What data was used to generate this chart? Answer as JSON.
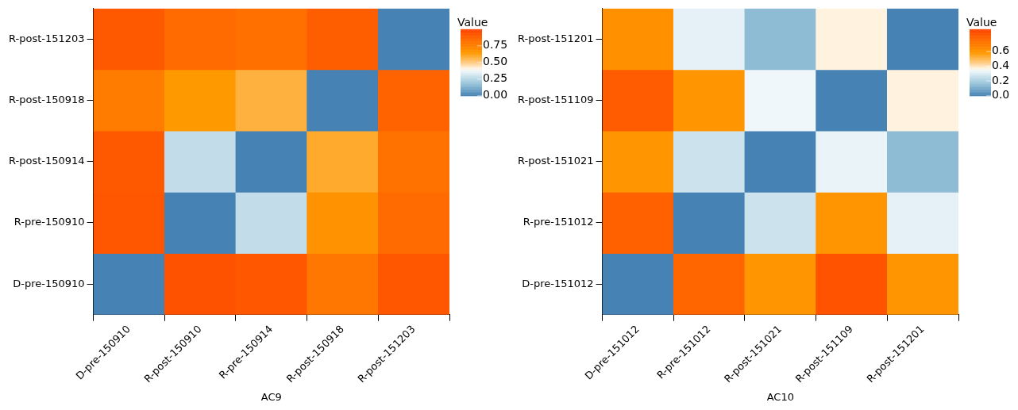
{
  "chart_data": [
    {
      "type": "heatmap",
      "xlabel": "AC9",
      "clabel": "Value",
      "categories": [
        "D-pre-150910",
        "R-post-150910",
        "R-pre-150914",
        "R-post-150918",
        "R-post-151203"
      ],
      "y_categories": [
        "R-post-151203",
        "R-post-150918",
        "R-post-150914",
        "R-pre-150910",
        "D-pre-150910"
      ],
      "cells": [
        [
          0.92,
          0.85,
          0.83,
          0.9,
          0
        ],
        [
          0.78,
          0.65,
          0.58,
          0,
          0.88
        ],
        [
          0.92,
          0.28,
          0,
          0.6,
          0.82
        ],
        [
          0.93,
          0,
          0.28,
          0.68,
          0.85
        ],
        [
          0,
          0.95,
          0.93,
          0.8,
          0.93
        ]
      ],
      "clim": [
        0,
        1
      ],
      "cticks": [
        {
          "value": 0,
          "label": "0.00"
        },
        {
          "value": 0.25,
          "label": "0.25"
        },
        {
          "value": 0.5,
          "label": "0.50"
        },
        {
          "value": 0.75,
          "label": "0.75"
        }
      ]
    },
    {
      "type": "heatmap",
      "xlabel": "AC10",
      "clabel": "Value",
      "categories": [
        "D-pre-151012",
        "R-pre-151012",
        "R-post-151021",
        "R-post-151109",
        "R-post-151201"
      ],
      "y_categories": [
        "R-post-151201",
        "R-post-151109",
        "R-post-151021",
        "R-pre-151012",
        "D-pre-151012"
      ],
      "cells": [
        [
          0.62,
          0.32,
          0.15,
          0.38,
          0
        ],
        [
          0.82,
          0.6,
          0.34,
          0,
          0.38
        ],
        [
          0.6,
          0.27,
          0,
          0.33,
          0.15
        ],
        [
          0.8,
          0,
          0.27,
          0.6,
          0.32
        ],
        [
          0,
          0.78,
          0.6,
          0.85,
          0.6
        ]
      ],
      "clim": [
        0,
        0.9
      ],
      "cticks": [
        {
          "value": 0,
          "label": "0.0"
        },
        {
          "value": 0.2,
          "label": "0.2"
        },
        {
          "value": 0.4,
          "label": "0.4"
        },
        {
          "value": 0.6,
          "label": "0.6"
        }
      ]
    }
  ]
}
